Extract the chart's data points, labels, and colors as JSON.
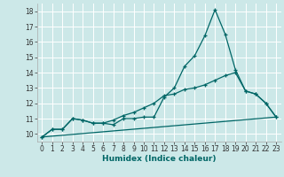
{
  "xlabel": "Humidex (Indice chaleur)",
  "bg_color": "#cce8e8",
  "grid_color": "#ffffff",
  "line_color": "#006666",
  "xlim": [
    -0.5,
    23.5
  ],
  "ylim": [
    9.5,
    18.5
  ],
  "xticks": [
    0,
    1,
    2,
    3,
    4,
    5,
    6,
    7,
    8,
    9,
    10,
    11,
    12,
    13,
    14,
    15,
    16,
    17,
    18,
    19,
    20,
    21,
    22,
    23
  ],
  "yticks": [
    10,
    11,
    12,
    13,
    14,
    15,
    16,
    17,
    18
  ],
  "series1_x": [
    0,
    1,
    2,
    3,
    4,
    5,
    6,
    7,
    8,
    9,
    10,
    11,
    12,
    13,
    14,
    15,
    16,
    17,
    18,
    19,
    20,
    21,
    22,
    23
  ],
  "series1_y": [
    9.8,
    10.3,
    10.3,
    11.0,
    10.9,
    10.7,
    10.7,
    10.6,
    11.0,
    11.0,
    11.1,
    11.1,
    12.4,
    13.0,
    14.4,
    15.1,
    16.4,
    18.1,
    16.5,
    14.2,
    12.8,
    12.6,
    12.0,
    11.1
  ],
  "series2_x": [
    0,
    1,
    2,
    3,
    4,
    5,
    6,
    7,
    8,
    9,
    10,
    11,
    12,
    13,
    14,
    15,
    16,
    17,
    18,
    19,
    20,
    21,
    22,
    23
  ],
  "series2_y": [
    9.8,
    10.3,
    10.3,
    11.0,
    10.9,
    10.7,
    10.7,
    10.9,
    11.2,
    11.4,
    11.7,
    12.0,
    12.5,
    12.6,
    12.9,
    13.0,
    13.2,
    13.5,
    13.8,
    14.0,
    12.8,
    12.6,
    12.0,
    11.1
  ],
  "series3_x": [
    0,
    23
  ],
  "series3_y": [
    9.8,
    11.1
  ],
  "xlabel_fontsize": 6.5,
  "tick_fontsize": 5.5
}
